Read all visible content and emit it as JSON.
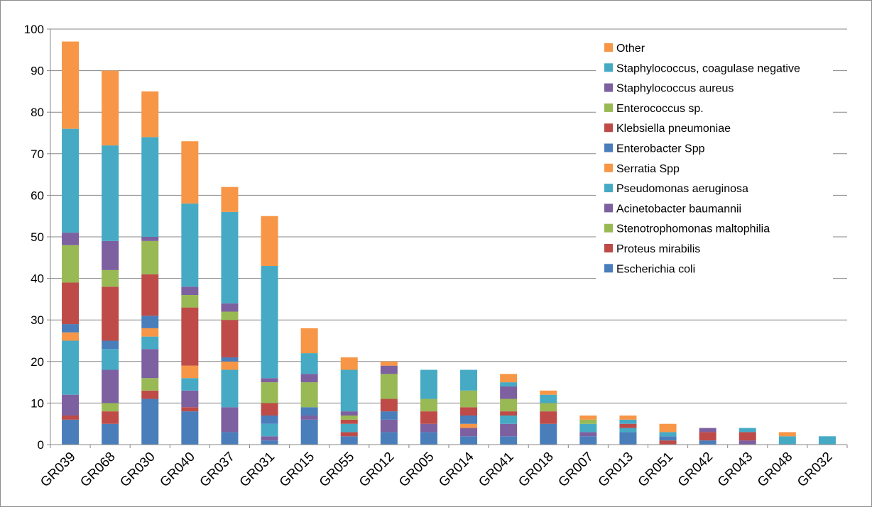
{
  "chart_data": {
    "type": "bar",
    "stacked": true,
    "title": "",
    "xlabel": "",
    "ylabel": "",
    "ylim": [
      0,
      100
    ],
    "y_ticks": [
      0,
      10,
      20,
      30,
      40,
      50,
      60,
      70,
      80,
      90,
      100
    ],
    "grid": "horizontal",
    "legend_position": "right",
    "categories": [
      "GR039",
      "GR068",
      "GR030",
      "GR040",
      "GR037",
      "GR031",
      "GR015",
      "GR055",
      "GR012",
      "GR005",
      "GR014",
      "GR041",
      "GR018",
      "GR007",
      "GR013",
      "GR051",
      "GR042",
      "GR043",
      "GR048",
      "GR032"
    ],
    "series": [
      {
        "name": "Escherichia coli",
        "color": "#4a7ebb",
        "values": [
          6,
          5,
          11,
          8,
          3,
          1,
          6,
          2,
          3,
          3,
          2,
          2,
          5,
          2,
          3,
          0,
          1,
          0,
          0,
          0
        ]
      },
      {
        "name": "Proteus mirabilis",
        "color": "#be4b48",
        "values": [
          1,
          3,
          2,
          1,
          0,
          0,
          0,
          1,
          0,
          0,
          0,
          0,
          0,
          0,
          0,
          1,
          0,
          0,
          0,
          0
        ]
      },
      {
        "name": "Stenotrophomonas maltophilia",
        "color": "#98b954",
        "values": [
          0,
          2,
          3,
          0,
          0,
          0,
          0,
          0,
          0,
          0,
          0,
          0,
          0,
          0,
          0,
          0,
          0,
          0,
          0,
          0
        ]
      },
      {
        "name": "Acinetobacter baumannii",
        "color": "#7d60a0",
        "values": [
          5,
          8,
          7,
          4,
          6,
          1,
          1,
          0,
          3,
          2,
          2,
          3,
          0,
          1,
          0,
          0,
          0,
          1,
          0,
          0
        ]
      },
      {
        "name": "Pseudomonas aeruginosa",
        "color": "#46aac5",
        "values": [
          13,
          5,
          3,
          3,
          9,
          3,
          0,
          2,
          0,
          0,
          0,
          2,
          0,
          2,
          1,
          0,
          0,
          0,
          0,
          0
        ]
      },
      {
        "name": "Serratia Spp",
        "color": "#f79646",
        "values": [
          2,
          0,
          2,
          3,
          2,
          0,
          0,
          0,
          0,
          0,
          1,
          0,
          0,
          0,
          0,
          0,
          0,
          0,
          0,
          0
        ]
      },
      {
        "name": "Enterobacter Spp",
        "color": "#4a7ebb",
        "values": [
          2,
          2,
          3,
          0,
          1,
          2,
          2,
          0,
          2,
          0,
          2,
          0,
          0,
          0,
          0,
          1,
          0,
          0,
          0,
          0
        ]
      },
      {
        "name": "Klebsiella pneumoniae",
        "color": "#be4b48",
        "values": [
          10,
          13,
          10,
          14,
          9,
          3,
          0,
          1,
          3,
          3,
          2,
          1,
          3,
          0,
          1,
          0,
          2,
          2,
          0,
          0
        ]
      },
      {
        "name": "Enterococcus sp.",
        "color": "#98b954",
        "values": [
          9,
          4,
          8,
          3,
          2,
          5,
          6,
          1,
          6,
          3,
          4,
          3,
          2,
          1,
          0,
          0,
          0,
          0,
          0,
          0
        ]
      },
      {
        "name": "Staphylococcus aureus",
        "color": "#7d60a0",
        "values": [
          3,
          7,
          1,
          2,
          2,
          1,
          2,
          1,
          2,
          0,
          0,
          3,
          0,
          0,
          0,
          0,
          1,
          0,
          0,
          0
        ]
      },
      {
        "name": "Staphylococcus, coagulase negative",
        "color": "#46aac5",
        "values": [
          25,
          23,
          24,
          20,
          22,
          27,
          5,
          10,
          0,
          7,
          5,
          1,
          2,
          0,
          1,
          1,
          0,
          1,
          2,
          2
        ]
      },
      {
        "name": "Other",
        "color": "#f79646",
        "values": [
          21,
          18,
          11,
          15,
          6,
          12,
          6,
          3,
          1,
          0,
          0,
          2,
          1,
          1,
          1,
          2,
          0,
          0,
          1,
          0
        ]
      }
    ]
  }
}
